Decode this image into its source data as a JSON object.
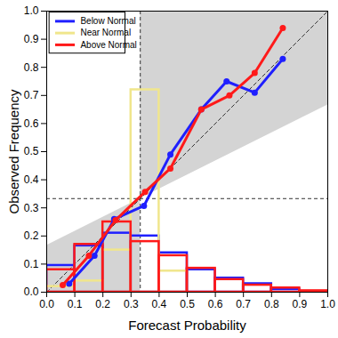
{
  "chart_data": {
    "type": "line",
    "x_label": "Forecast Probability",
    "y_label": "Observed Frequency",
    "xlim": [
      0,
      1
    ],
    "ylim": [
      0,
      1
    ],
    "xticks": [
      {
        "value": 0,
        "label": "0.0"
      },
      {
        "value": 0.1,
        "label": "0.1"
      },
      {
        "value": 0.2,
        "label": "0.2"
      },
      {
        "value": 0.3,
        "label": "0.3"
      },
      {
        "value": 0.4,
        "label": "0.4"
      },
      {
        "value": 0.5,
        "label": "0.5"
      },
      {
        "value": 0.6,
        "label": "0.6"
      },
      {
        "value": 0.7,
        "label": "0.7"
      },
      {
        "value": 0.8,
        "label": "0.8"
      },
      {
        "value": 0.9,
        "label": "0.9"
      },
      {
        "value": 1,
        "label": "1.0"
      }
    ],
    "yticks": [
      {
        "value": 0,
        "label": "0.0"
      },
      {
        "value": 0.1,
        "label": "0.1"
      },
      {
        "value": 0.2,
        "label": "0.2"
      },
      {
        "value": 0.3,
        "label": "0.3"
      },
      {
        "value": 0.4,
        "label": "0.4"
      },
      {
        "value": 0.5,
        "label": "0.5"
      },
      {
        "value": 0.6,
        "label": "0.6"
      },
      {
        "value": 0.7,
        "label": "0.7"
      },
      {
        "value": 0.8,
        "label": "0.8"
      },
      {
        "value": 0.9,
        "label": "0.9"
      },
      {
        "value": 1,
        "label": "1.0"
      }
    ],
    "climatology": 0.333,
    "legend": "upper left",
    "bins": [
      0,
      0.1,
      0.2,
      0.3,
      0.4,
      0.5,
      0.6,
      0.7,
      0.8,
      0.9,
      1.0
    ],
    "series": [
      {
        "name": "Below Normal",
        "color": "#1f1fff",
        "marker": "circle",
        "x": [
          0.08,
          0.17,
          0.24,
          0.346,
          0.44,
          0.55,
          0.64,
          0.74,
          0.84
        ],
        "values": [
          0.03,
          0.13,
          0.26,
          0.307,
          0.49,
          0.65,
          0.75,
          0.71,
          0.83
        ],
        "forecast_frequency": [
          0.095,
          0.165,
          0.21,
          0.2,
          0.14,
          0.08,
          0.05,
          0.03,
          0.01,
          0
        ]
      },
      {
        "name": "Near Normal",
        "color": "#f0e68c",
        "marker": "circle",
        "x": [],
        "values": [],
        "forecast_frequency": [
          0.02,
          0.04,
          0.15,
          0.72,
          0.075,
          0,
          0,
          0,
          0,
          0
        ]
      },
      {
        "name": "Above Normal",
        "color": "#ff1a1a",
        "marker": "circle",
        "x": [
          0.057,
          0.15,
          0.245,
          0.35,
          0.44,
          0.55,
          0.65,
          0.74,
          0.84
        ],
        "values": [
          0.025,
          0.13,
          0.256,
          0.357,
          0.44,
          0.65,
          0.7,
          0.78,
          0.94
        ],
        "forecast_frequency": [
          0.08,
          0.17,
          0.25,
          0.18,
          0.13,
          0.085,
          0.045,
          0.025,
          0.015,
          0.005
        ]
      }
    ]
  }
}
